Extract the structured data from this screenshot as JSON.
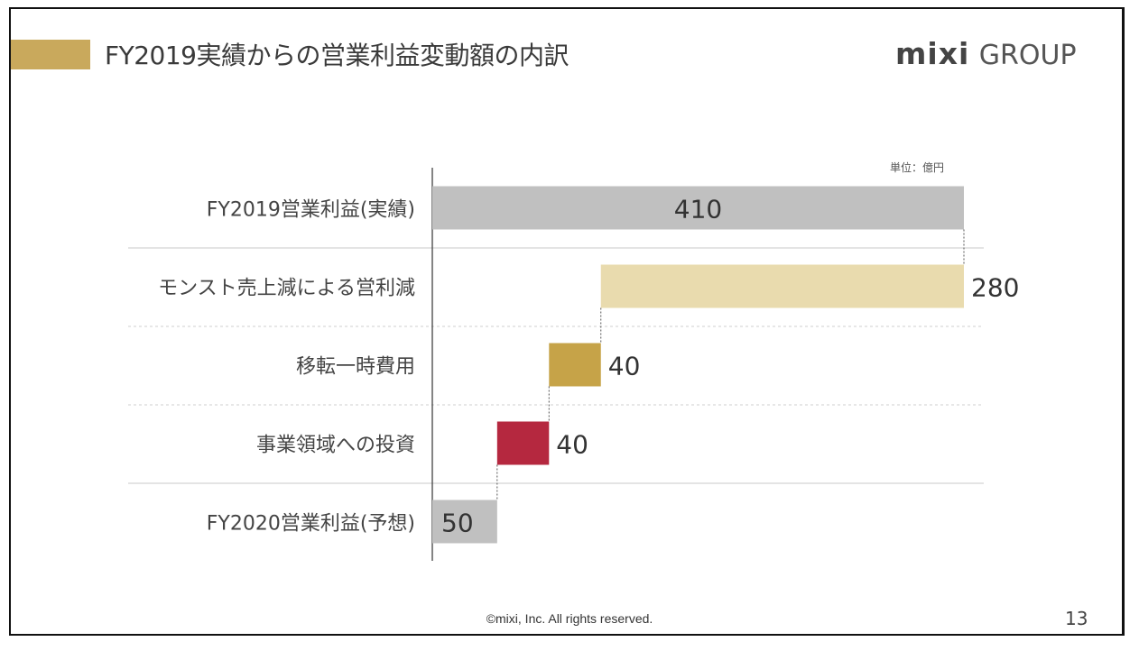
{
  "slide": {
    "title": "FY2019実績からの営業利益変動額の内訳",
    "logo": {
      "mark": "mixi",
      "text": "GROUP"
    },
    "accent_color": "#c9a95c",
    "footer": "©mixi, Inc. All rights reserved.",
    "page_number": "13"
  },
  "chart_data": {
    "type": "waterfall",
    "unit_label": "単位：億円",
    "categories": [
      "FY2019営業利益(実績)",
      "モンスト売上減による営利減",
      "移転一時費用",
      "事業領域への投資",
      "FY2020営業利益(予想)"
    ],
    "values": [
      410,
      -280,
      -40,
      -40,
      50
    ],
    "data_labels": [
      "410",
      "280",
      "40",
      "40",
      "50"
    ],
    "kinds": [
      "total",
      "decrease",
      "decrease",
      "decrease",
      "total"
    ],
    "colors": [
      "#c0c0c0",
      "#e9dbae",
      "#c6a348",
      "#b5283f",
      "#c0c0c0"
    ],
    "xlim": [
      0,
      410
    ],
    "orientation": "horizontal"
  }
}
